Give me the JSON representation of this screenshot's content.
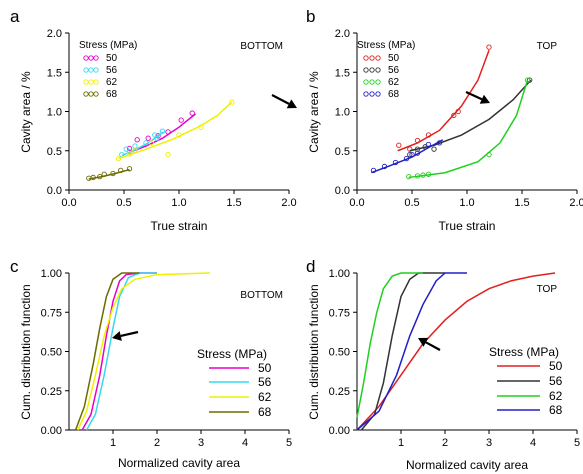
{
  "chart_data": [
    {
      "panel": "a",
      "type": "scatter",
      "corner_label": "BOTTOM",
      "xlabel": "True strain",
      "ylabel": "Cavity area / %",
      "xlim": [
        0.0,
        2.0
      ],
      "ylim": [
        0.0,
        2.0
      ],
      "xticks": [
        "0.0",
        "0.5",
        "1.0",
        "1.5",
        "2.0"
      ],
      "yticks": [
        "0.0",
        "0.5",
        "1.0",
        "1.5",
        "2.0"
      ],
      "legend_title": "Stress (MPa)",
      "legend_position": "top-left",
      "series": [
        {
          "name": "50",
          "color": "#e800c8",
          "points": [
            [
              0.55,
              0.53
            ],
            [
              0.62,
              0.64
            ],
            [
              0.72,
              0.66
            ],
            [
              0.81,
              0.69
            ],
            [
              0.9,
              0.74
            ],
            [
              1.02,
              0.89
            ],
            [
              1.12,
              0.98
            ],
            [
              0.6,
              0.5
            ]
          ],
          "fit": [
            [
              0.55,
              0.48
            ],
            [
              0.7,
              0.56
            ],
            [
              0.85,
              0.66
            ],
            [
              1.0,
              0.8
            ],
            [
              1.15,
              0.97
            ]
          ]
        },
        {
          "name": "56",
          "color": "#38d8f0",
          "points": [
            [
              0.48,
              0.45
            ],
            [
              0.52,
              0.52
            ],
            [
              0.6,
              0.56
            ],
            [
              0.7,
              0.6
            ],
            [
              0.8,
              0.66
            ],
            [
              0.85,
              0.75
            ],
            [
              0.78,
              0.7
            ],
            [
              0.55,
              0.49
            ]
          ],
          "fit": [
            [
              0.48,
              0.44
            ],
            [
              0.6,
              0.51
            ],
            [
              0.72,
              0.6
            ],
            [
              0.86,
              0.74
            ]
          ]
        },
        {
          "name": "62",
          "color": "#f0f000",
          "points": [
            [
              0.45,
              0.4
            ],
            [
              0.55,
              0.46
            ],
            [
              0.6,
              0.5
            ],
            [
              0.75,
              0.6
            ],
            [
              0.9,
              0.45
            ],
            [
              1.0,
              0.7
            ],
            [
              1.2,
              0.8
            ],
            [
              1.48,
              1.12
            ]
          ],
          "fit": [
            [
              0.45,
              0.4
            ],
            [
              0.7,
              0.52
            ],
            [
              0.95,
              0.65
            ],
            [
              1.2,
              0.82
            ],
            [
              1.35,
              0.95
            ],
            [
              1.48,
              1.12
            ]
          ]
        },
        {
          "name": "68",
          "color": "#6b6b00",
          "points": [
            [
              0.18,
              0.15
            ],
            [
              0.22,
              0.16
            ],
            [
              0.28,
              0.17
            ],
            [
              0.32,
              0.2
            ],
            [
              0.4,
              0.21
            ],
            [
              0.47,
              0.25
            ],
            [
              0.55,
              0.27
            ]
          ],
          "fit": [
            [
              0.18,
              0.14
            ],
            [
              0.3,
              0.17
            ],
            [
              0.42,
              0.21
            ],
            [
              0.55,
              0.26
            ]
          ]
        }
      ],
      "annotation": "arrow"
    },
    {
      "panel": "b",
      "type": "scatter",
      "corner_label": "TOP",
      "xlabel": "True strain",
      "ylabel": "Cavity area / %",
      "xlim": [
        0.0,
        2.0
      ],
      "ylim": [
        0.0,
        2.0
      ],
      "xticks": [
        "0.0",
        "0.5",
        "1.0",
        "1.5",
        "2.0"
      ],
      "yticks": [
        "0.0",
        "0.5",
        "1.0",
        "1.5",
        "2.0"
      ],
      "legend_title": "Stress (MPa)",
      "legend_position": "top-left",
      "series": [
        {
          "name": "50",
          "color": "#e02020",
          "points": [
            [
              0.38,
              0.57
            ],
            [
              0.48,
              0.52
            ],
            [
              0.55,
              0.63
            ],
            [
              0.65,
              0.7
            ],
            [
              0.88,
              0.95
            ],
            [
              0.92,
              1.0
            ],
            [
              1.2,
              1.82
            ]
          ],
          "fit": [
            [
              0.37,
              0.5
            ],
            [
              0.55,
              0.6
            ],
            [
              0.75,
              0.76
            ],
            [
              0.95,
              1.07
            ],
            [
              1.1,
              1.4
            ],
            [
              1.2,
              1.78
            ]
          ]
        },
        {
          "name": "56",
          "color": "#333333",
          "points": [
            [
              0.48,
              0.45
            ],
            [
              0.55,
              0.52
            ],
            [
              0.62,
              0.55
            ],
            [
              0.7,
              0.52
            ],
            [
              1.57,
              1.4
            ]
          ],
          "fit": [
            [
              0.48,
              0.5
            ],
            [
              0.7,
              0.57
            ],
            [
              0.95,
              0.7
            ],
            [
              1.2,
              0.9
            ],
            [
              1.42,
              1.15
            ],
            [
              1.58,
              1.4
            ]
          ]
        },
        {
          "name": "62",
          "color": "#20d020",
          "points": [
            [
              0.47,
              0.17
            ],
            [
              0.55,
              0.18
            ],
            [
              0.6,
              0.19
            ],
            [
              0.65,
              0.2
            ],
            [
              1.2,
              0.45
            ],
            [
              1.55,
              1.4
            ]
          ],
          "fit": [
            [
              0.47,
              0.16
            ],
            [
              0.8,
              0.22
            ],
            [
              1.1,
              0.36
            ],
            [
              1.3,
              0.6
            ],
            [
              1.45,
              0.95
            ],
            [
              1.55,
              1.4
            ]
          ]
        },
        {
          "name": "68",
          "color": "#2020c8",
          "points": [
            [
              0.15,
              0.25
            ],
            [
              0.25,
              0.3
            ],
            [
              0.35,
              0.35
            ],
            [
              0.45,
              0.4
            ],
            [
              0.5,
              0.45
            ],
            [
              0.55,
              0.47
            ],
            [
              0.65,
              0.58
            ],
            [
              0.75,
              0.6
            ]
          ],
          "fit": [
            [
              0.13,
              0.22
            ],
            [
              0.3,
              0.31
            ],
            [
              0.5,
              0.42
            ],
            [
              0.65,
              0.54
            ],
            [
              0.78,
              0.64
            ]
          ]
        }
      ],
      "annotation": "arrow"
    },
    {
      "panel": "c",
      "type": "line",
      "corner_label": "BOTTOM",
      "xlabel": "Normalized cavity area",
      "ylabel": "Cum. distribution function",
      "xlim": [
        0,
        5
      ],
      "ylim": [
        0.0,
        1.0
      ],
      "xticks": [
        "1",
        "2",
        "3",
        "4",
        "5"
      ],
      "yticks": [
        "0.00",
        "0.25",
        "0.50",
        "0.75",
        "1.00"
      ],
      "legend_title": "Stress (MPa)",
      "legend_position": "bottom-right",
      "series": [
        {
          "name": "50",
          "color": "#e800c8",
          "points": [
            [
              0.3,
              0.0
            ],
            [
              0.5,
              0.1
            ],
            [
              0.7,
              0.35
            ],
            [
              0.85,
              0.6
            ],
            [
              1.0,
              0.82
            ],
            [
              1.15,
              0.95
            ],
            [
              1.3,
              0.99
            ],
            [
              1.6,
              1.0
            ],
            [
              2.0,
              1.0
            ]
          ]
        },
        {
          "name": "56",
          "color": "#38d8f0",
          "points": [
            [
              0.4,
              0.0
            ],
            [
              0.6,
              0.1
            ],
            [
              0.8,
              0.35
            ],
            [
              1.0,
              0.65
            ],
            [
              1.15,
              0.85
            ],
            [
              1.35,
              0.97
            ],
            [
              1.6,
              1.0
            ],
            [
              2.0,
              1.0
            ]
          ]
        },
        {
          "name": "62",
          "color": "#f0f000",
          "points": [
            [
              0.2,
              0.0
            ],
            [
              0.4,
              0.12
            ],
            [
              0.6,
              0.35
            ],
            [
              0.8,
              0.6
            ],
            [
              1.0,
              0.78
            ],
            [
              1.2,
              0.9
            ],
            [
              1.5,
              0.96
            ],
            [
              2.0,
              0.99
            ],
            [
              3.2,
              1.0
            ]
          ]
        },
        {
          "name": "68",
          "color": "#6b6b00",
          "points": [
            [
              0.15,
              0.0
            ],
            [
              0.35,
              0.15
            ],
            [
              0.55,
              0.42
            ],
            [
              0.7,
              0.65
            ],
            [
              0.85,
              0.85
            ],
            [
              1.0,
              0.96
            ],
            [
              1.2,
              1.0
            ],
            [
              1.6,
              1.0
            ]
          ]
        }
      ],
      "annotation": "arrow"
    },
    {
      "panel": "d",
      "type": "line",
      "corner_label": "TOP",
      "xlabel": "Normalized cavity area",
      "ylabel": "Cum. distribution function",
      "xlim": [
        0,
        5
      ],
      "ylim": [
        0.0,
        1.0
      ],
      "xticks": [
        "1",
        "2",
        "3",
        "4",
        "5"
      ],
      "yticks": [
        "0.00",
        "0.25",
        "0.50",
        "0.75",
        "1.00"
      ],
      "legend_title": "Stress (MPa)",
      "legend_position": "bottom-right",
      "series": [
        {
          "name": "50",
          "color": "#e02020",
          "points": [
            [
              0.0,
              0.0
            ],
            [
              0.5,
              0.15
            ],
            [
              1.0,
              0.35
            ],
            [
              1.5,
              0.55
            ],
            [
              2.0,
              0.7
            ],
            [
              2.5,
              0.82
            ],
            [
              3.0,
              0.9
            ],
            [
              3.5,
              0.95
            ],
            [
              4.0,
              0.98
            ],
            [
              4.5,
              1.0
            ]
          ]
        },
        {
          "name": "56",
          "color": "#333333",
          "points": [
            [
              0.1,
              0.0
            ],
            [
              0.4,
              0.1
            ],
            [
              0.6,
              0.3
            ],
            [
              0.8,
              0.6
            ],
            [
              1.0,
              0.85
            ],
            [
              1.2,
              0.96
            ],
            [
              1.4,
              1.0
            ],
            [
              2.0,
              1.0
            ]
          ]
        },
        {
          "name": "62",
          "color": "#20d020",
          "points": [
            [
              0.0,
              0.08
            ],
            [
              0.15,
              0.3
            ],
            [
              0.3,
              0.55
            ],
            [
              0.45,
              0.75
            ],
            [
              0.6,
              0.9
            ],
            [
              0.8,
              0.98
            ],
            [
              1.0,
              1.0
            ],
            [
              1.5,
              1.0
            ]
          ]
        },
        {
          "name": "68",
          "color": "#2020c8",
          "points": [
            [
              0.0,
              0.0
            ],
            [
              0.5,
              0.12
            ],
            [
              0.9,
              0.35
            ],
            [
              1.2,
              0.6
            ],
            [
              1.5,
              0.8
            ],
            [
              1.8,
              0.95
            ],
            [
              2.0,
              1.0
            ],
            [
              2.5,
              1.0
            ]
          ]
        }
      ],
      "annotation": "arrow"
    }
  ]
}
